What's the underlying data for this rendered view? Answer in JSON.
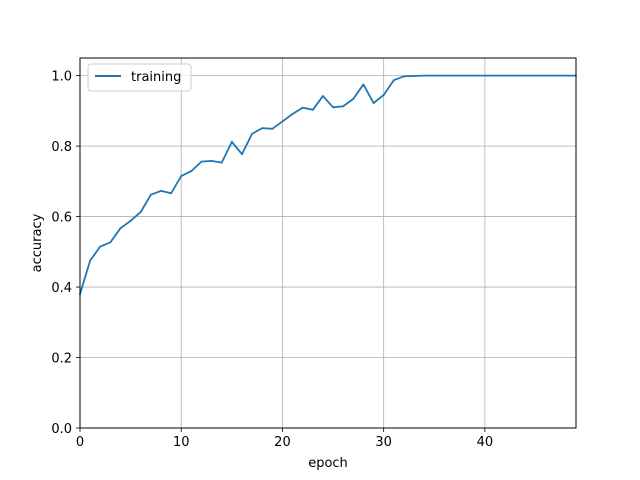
{
  "chart_data": {
    "type": "line",
    "title": "",
    "xlabel": "epoch",
    "ylabel": "accuracy",
    "xlim": [
      0,
      49
    ],
    "ylim": [
      0,
      1.05
    ],
    "x_ticks": [
      0,
      10,
      20,
      30,
      40
    ],
    "y_ticks": [
      0.0,
      0.2,
      0.4,
      0.6,
      0.8,
      1.0
    ],
    "x_tick_labels": [
      "0",
      "10",
      "20",
      "30",
      "40"
    ],
    "y_tick_labels": [
      "0.0",
      "0.2",
      "0.4",
      "0.6",
      "0.8",
      "1.0"
    ],
    "grid": true,
    "legend": {
      "position": "top-left"
    },
    "series": [
      {
        "name": "training",
        "color": "#1f77b4",
        "x": [
          0,
          1,
          2,
          3,
          4,
          5,
          6,
          7,
          8,
          9,
          10,
          11,
          12,
          13,
          14,
          15,
          16,
          17,
          18,
          19,
          20,
          21,
          22,
          23,
          24,
          25,
          26,
          27,
          28,
          29,
          30,
          31,
          32,
          33,
          34,
          35,
          36,
          37,
          38,
          39,
          40,
          41,
          42,
          43,
          44,
          45,
          46,
          47,
          48,
          49
        ],
        "values": [
          0.38,
          0.475,
          0.515,
          0.527,
          0.567,
          0.588,
          0.613,
          0.662,
          0.673,
          0.666,
          0.715,
          0.729,
          0.756,
          0.758,
          0.753,
          0.812,
          0.777,
          0.835,
          0.851,
          0.849,
          0.87,
          0.891,
          0.909,
          0.903,
          0.942,
          0.91,
          0.913,
          0.934,
          0.975,
          0.922,
          0.945,
          0.987,
          0.998,
          0.999,
          1.0,
          1.0,
          1.0,
          1.0,
          1.0,
          1.0,
          1.0,
          1.0,
          1.0,
          1.0,
          1.0,
          1.0,
          1.0,
          1.0,
          1.0,
          1.0
        ]
      }
    ]
  }
}
